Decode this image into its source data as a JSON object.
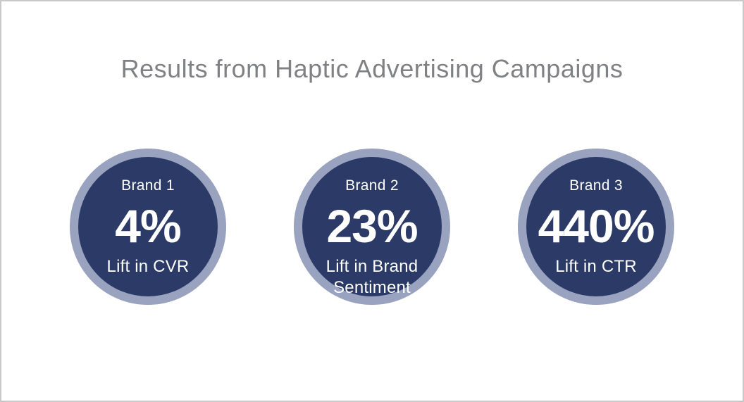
{
  "slide": {
    "title": "Results from Haptic Advertising Campaigns"
  },
  "stats": [
    {
      "brand": "Brand 1",
      "value": "4%",
      "label": "Lift in CVR"
    },
    {
      "brand": "Brand 2",
      "value": "23%",
      "label": "Lift in Brand Sentiment"
    },
    {
      "brand": "Brand 3",
      "value": "440%",
      "label": "Lift in CTR"
    }
  ],
  "colors": {
    "circle_fill": "#2b3a67",
    "circle_ring": "#99a2bf",
    "title_text": "#808184",
    "stat_text": "#ffffff",
    "page_border": "#c9c9c9"
  },
  "chart_data": {
    "type": "table",
    "title": "Results from Haptic Advertising Campaigns",
    "categories": [
      "Brand 1",
      "Brand 2",
      "Brand 3"
    ],
    "values": [
      4,
      23,
      440
    ],
    "value_labels": [
      "4%",
      "23%",
      "440%"
    ],
    "metrics": [
      "Lift in CVR",
      "Lift in Brand Sentiment",
      "Lift in CTR"
    ],
    "legend_position": "none",
    "grid": false
  }
}
